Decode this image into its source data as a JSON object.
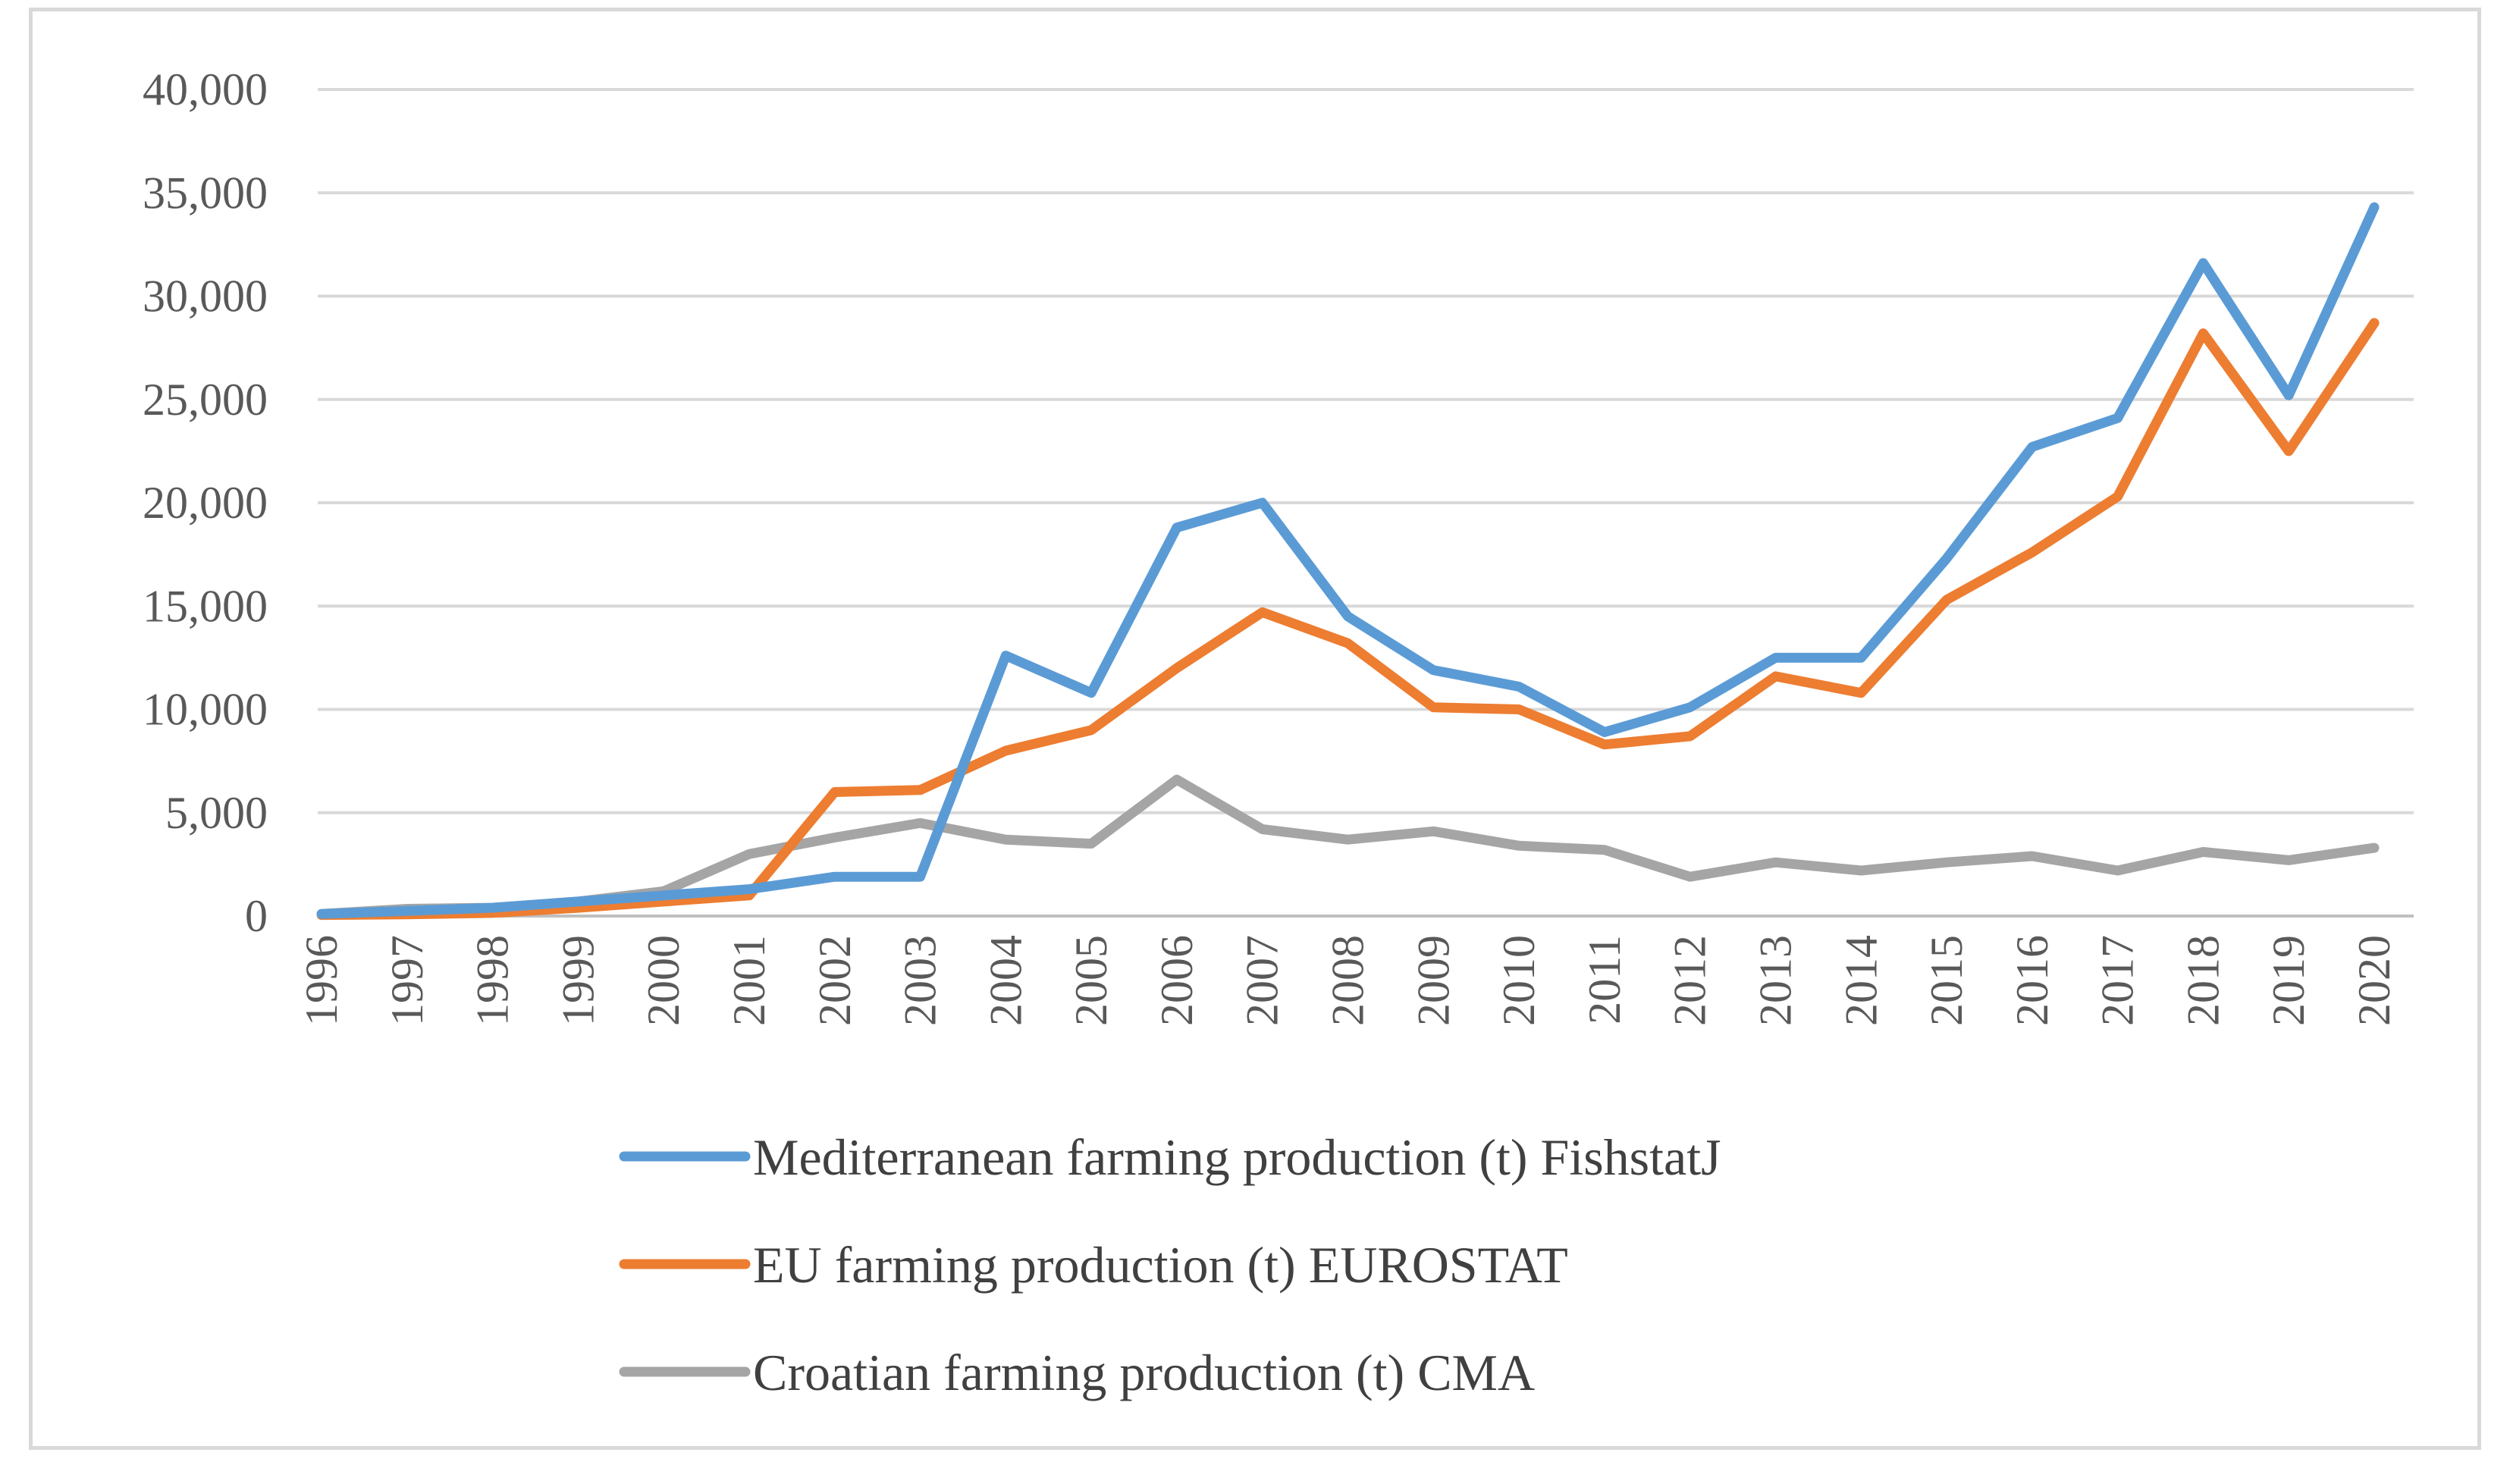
{
  "chart_data": {
    "type": "line",
    "title": "",
    "xlabel": "",
    "ylabel": "",
    "ylim": [
      0,
      40000
    ],
    "yticks": [
      0,
      5000,
      10000,
      15000,
      20000,
      25000,
      30000,
      35000,
      40000
    ],
    "ytick_labels": [
      "0",
      "5,000",
      "10,000",
      "15,000",
      "20,000",
      "25,000",
      "30,000",
      "35,000",
      "40,000"
    ],
    "grid": true,
    "legend_position": "bottom",
    "categories": [
      "1996",
      "1997",
      "1998",
      "1999",
      "2000",
      "2001",
      "2002",
      "2003",
      "2004",
      "2005",
      "2006",
      "2007",
      "2008",
      "2009",
      "2010",
      "2011",
      "2012",
      "2013",
      "2014",
      "2015",
      "2016",
      "2017",
      "2018",
      "2019",
      "2020"
    ],
    "series": [
      {
        "name": "Mediterranean farming production (t) FishstatJ",
        "color": "#5b9bd5",
        "values": [
          100,
          250,
          400,
          700,
          1000,
          1300,
          1900,
          1900,
          12600,
          10800,
          18800,
          20000,
          14500,
          11900,
          11100,
          8900,
          10100,
          12500,
          12500,
          17300,
          22700,
          24100,
          31600,
          25200,
          34300
        ]
      },
      {
        "name": "EU farming production (t) EUROSTAT",
        "color": "#ed7d31",
        "values": [
          50,
          80,
          150,
          400,
          700,
          1000,
          6000,
          6100,
          8000,
          9000,
          12000,
          14700,
          13200,
          10100,
          10000,
          8300,
          8700,
          11600,
          10800,
          15300,
          17600,
          20300,
          28200,
          22500,
          28700
        ]
      },
      {
        "name": "Croatian farming production (t) CMA",
        "color": "#a5a5a5",
        "values": [
          100,
          350,
          400,
          700,
          1200,
          3000,
          3800,
          4500,
          3700,
          3500,
          6600,
          4200,
          3700,
          4100,
          3400,
          3200,
          1900,
          2600,
          2200,
          2600,
          2900,
          2200,
          3100,
          2700,
          3300
        ]
      }
    ]
  }
}
